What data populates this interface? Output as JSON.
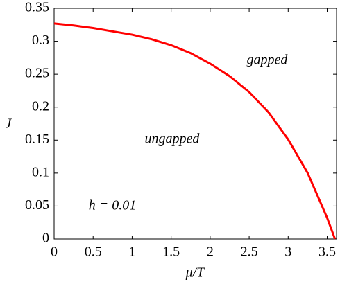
{
  "chart_data": {
    "type": "line",
    "xlabel": "μ/T",
    "ylabel": "J",
    "x": [
      0,
      0.25,
      0.5,
      0.75,
      1,
      1.25,
      1.5,
      1.75,
      2,
      2.25,
      2.5,
      2.75,
      3,
      3.25,
      3.5,
      3.6
    ],
    "series": [
      {
        "name": "boundary",
        "color": "#ff0000",
        "values": [
          0.327,
          0.324,
          0.32,
          0.315,
          0.31,
          0.303,
          0.294,
          0.282,
          0.266,
          0.247,
          0.223,
          0.192,
          0.151,
          0.1,
          0.032,
          0
        ]
      }
    ],
    "xlim": [
      0,
      3.62
    ],
    "ylim": [
      0,
      0.35
    ],
    "xticks": [
      0,
      0.5,
      1,
      1.5,
      2,
      2.5,
      3,
      3.5
    ],
    "yticks": [
      0,
      0.05,
      0.1,
      0.15,
      0.2,
      0.25,
      0.3,
      0.35
    ],
    "annotations": [
      "gapped",
      "ungapped",
      "h = 0.01"
    ]
  }
}
